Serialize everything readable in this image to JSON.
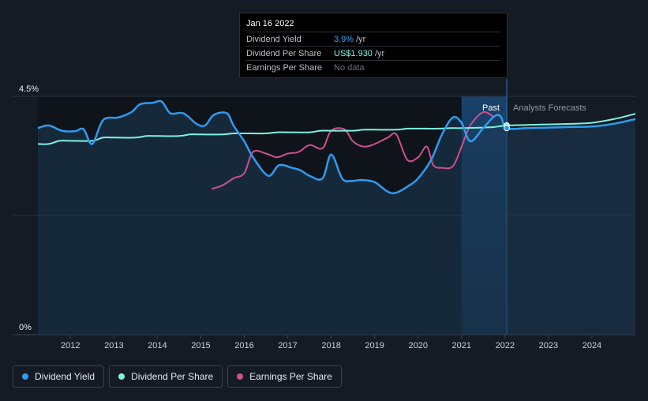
{
  "tooltip": {
    "date": "Jan 16 2022",
    "rows": [
      {
        "label": "Dividend Yield",
        "value": "3.9%",
        "unit": "/yr"
      },
      {
        "label": "Dividend Per Share",
        "value": "US$1.930",
        "unit": "/yr"
      },
      {
        "label": "Earnings Per Share",
        "value": "No data",
        "unit": ""
      }
    ]
  },
  "region_labels": {
    "past": "Past",
    "forecast": "Analysts Forecasts"
  },
  "legend": [
    {
      "label": "Dividend Yield",
      "color": "#2f9bf0"
    },
    {
      "label": "Dividend Per Share",
      "color": "#7ff2e0"
    },
    {
      "label": "Earnings Per Share",
      "color": "#cf4f8f"
    }
  ],
  "colors": {
    "background": "#151b24",
    "yield": "#2f9bf0",
    "dps": "#7ff2e0",
    "eps": "#cf4f8f",
    "highlight": "#1a4a7a"
  },
  "chart_data": {
    "type": "line",
    "y_tick_labels": [
      "4.5%",
      "0%"
    ],
    "ylim": [
      0,
      4.5
    ],
    "xlim": [
      2011.25,
      2025.0
    ],
    "x_ticks": [
      2012,
      2013,
      2014,
      2015,
      2016,
      2017,
      2018,
      2019,
      2020,
      2021,
      2022,
      2023,
      2024
    ],
    "x_tick_labels": [
      "2012",
      "2013",
      "2014",
      "2015",
      "2016",
      "2017",
      "2018",
      "2019",
      "2020",
      "2021",
      "2022",
      "2023",
      "2024"
    ],
    "highlight_range": [
      2021.0,
      2022.04
    ],
    "divider_x": 2022.04,
    "series": [
      {
        "name": "Dividend Yield",
        "x": [
          2011.25,
          2011.5,
          2011.8,
          2012.1,
          2012.3,
          2012.5,
          2012.75,
          2013.1,
          2013.4,
          2013.6,
          2013.9,
          2014.1,
          2014.3,
          2014.6,
          2014.9,
          2015.1,
          2015.3,
          2015.6,
          2015.75,
          2016.0,
          2016.2,
          2016.55,
          2016.8,
          2017.1,
          2017.3,
          2017.5,
          2017.8,
          2018.0,
          2018.25,
          2018.45,
          2018.7,
          2019.0,
          2019.3,
          2019.5,
          2019.8,
          2020.0,
          2020.3,
          2020.55,
          2020.8,
          2021.0,
          2021.2,
          2021.5,
          2021.75,
          2021.9,
          2022.04,
          2022.5,
          2023.0,
          2023.5,
          2024.0,
          2024.5,
          2025.0
        ],
        "y": [
          3.9,
          3.95,
          3.85,
          3.84,
          3.88,
          3.6,
          4.05,
          4.1,
          4.2,
          4.35,
          4.38,
          4.4,
          4.18,
          4.18,
          3.98,
          3.95,
          4.15,
          4.18,
          3.95,
          3.65,
          3.35,
          3.0,
          3.2,
          3.15,
          3.1,
          3.0,
          2.95,
          3.4,
          2.95,
          2.9,
          2.92,
          2.88,
          2.7,
          2.68,
          2.82,
          2.95,
          3.3,
          3.78,
          4.1,
          4.0,
          3.65,
          3.9,
          4.12,
          4.12,
          3.9,
          3.9,
          3.91,
          3.92,
          3.93,
          3.98,
          4.07
        ]
      },
      {
        "name": "Dividend Per Share",
        "x": [
          2011.25,
          2011.5,
          2011.75,
          2012.0,
          2012.5,
          2012.75,
          2013.0,
          2013.5,
          2013.75,
          2014.0,
          2014.5,
          2014.75,
          2015.0,
          2015.5,
          2015.75,
          2016.0,
          2016.5,
          2016.75,
          2017.0,
          2017.5,
          2017.75,
          2018.0,
          2018.5,
          2018.75,
          2019.0,
          2019.5,
          2019.75,
          2020.0,
          2020.5,
          2020.75,
          2021.0,
          2021.5,
          2021.75,
          2022.04,
          2022.5,
          2023.0,
          2023.5,
          2024.0,
          2024.5,
          2025.0
        ],
        "y": [
          3.6,
          3.6,
          3.66,
          3.66,
          3.66,
          3.72,
          3.72,
          3.72,
          3.75,
          3.75,
          3.75,
          3.78,
          3.78,
          3.78,
          3.8,
          3.8,
          3.8,
          3.82,
          3.82,
          3.82,
          3.85,
          3.85,
          3.85,
          3.87,
          3.87,
          3.87,
          3.89,
          3.89,
          3.89,
          3.9,
          3.9,
          3.91,
          3.92,
          3.95,
          3.96,
          3.97,
          3.98,
          4.0,
          4.07,
          4.17
        ]
      },
      {
        "name": "Earnings Per Share",
        "x": [
          2015.25,
          2015.5,
          2015.75,
          2016.0,
          2016.2,
          2016.5,
          2016.75,
          2017.0,
          2017.25,
          2017.5,
          2017.8,
          2018.0,
          2018.3,
          2018.5,
          2018.75,
          2019.0,
          2019.3,
          2019.5,
          2019.75,
          2020.0,
          2020.2,
          2020.35,
          2020.55,
          2020.8,
          2021.0,
          2021.2,
          2021.5,
          2021.75
        ],
        "y": [
          2.75,
          2.82,
          2.95,
          3.05,
          3.45,
          3.42,
          3.35,
          3.42,
          3.45,
          3.58,
          3.52,
          3.85,
          3.88,
          3.65,
          3.55,
          3.6,
          3.72,
          3.78,
          3.3,
          3.35,
          3.55,
          3.2,
          3.15,
          3.18,
          3.55,
          3.95,
          4.2,
          4.1
        ]
      }
    ]
  }
}
